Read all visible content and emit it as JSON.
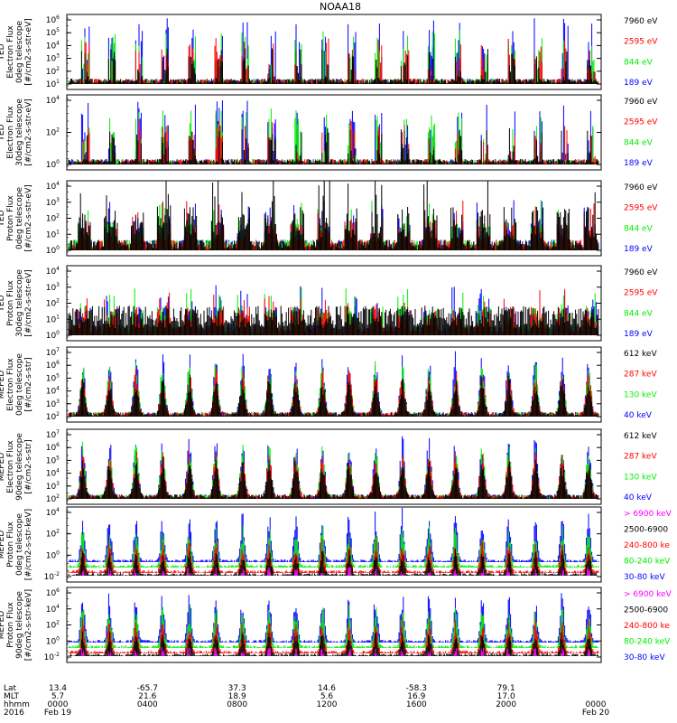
{
  "title": "NOAA18",
  "colors": {
    "black": "#000000",
    "red": "#ff0000",
    "green": "#00ee00",
    "blue": "#0000ff",
    "magenta": "#ff00ff"
  },
  "chart_data": [
    {
      "type": "line",
      "ylabel": [
        "TED",
        "Electron Flux",
        "0deg telescope",
        "[#/cm2-s-str-eV]"
      ],
      "ylog": true,
      "yticks": [
        "10^1",
        "10^2",
        "10^3",
        "10^4",
        "10^5",
        "10^6"
      ],
      "legend": [
        {
          "label": "7960 eV",
          "color": "black"
        },
        {
          "label": "2595 eV",
          "color": "red"
        },
        {
          "label": "844 eV",
          "color": "green"
        },
        {
          "label": "189 eV",
          "color": "blue"
        }
      ]
    },
    {
      "type": "line",
      "ylabel": [
        "TED",
        "Electron Flux",
        "30deg telescope",
        "[#/cm2-s-str-eV]"
      ],
      "ylog": true,
      "yticks": [
        "10^0",
        "10^2",
        "10^4"
      ],
      "legend": [
        {
          "label": "7960 eV",
          "color": "black"
        },
        {
          "label": "2595 eV",
          "color": "red"
        },
        {
          "label": "844 eV",
          "color": "green"
        },
        {
          "label": "189 eV",
          "color": "blue"
        }
      ]
    },
    {
      "type": "line",
      "ylabel": [
        "TED",
        "Proton Flux",
        "0deg telescope",
        "[#/cm2-s-str-eV]"
      ],
      "ylog": true,
      "yticks": [
        "10^0",
        "10^1",
        "10^2",
        "10^3",
        "10^4"
      ],
      "legend": [
        {
          "label": "7960 eV",
          "color": "black"
        },
        {
          "label": "2595 eV",
          "color": "red"
        },
        {
          "label": "844 eV",
          "color": "green"
        },
        {
          "label": "189 eV",
          "color": "blue"
        }
      ]
    },
    {
      "type": "line",
      "ylabel": [
        "TED",
        "Proton Flux",
        "30deg telescope",
        "[#/cm2-s-str-eV]"
      ],
      "ylog": true,
      "yticks": [
        "10^0",
        "10^1",
        "10^2",
        "10^3",
        "10^4"
      ],
      "legend": [
        {
          "label": "7960 eV",
          "color": "black"
        },
        {
          "label": "2595 eV",
          "color": "red"
        },
        {
          "label": "844 eV",
          "color": "green"
        },
        {
          "label": "189 eV",
          "color": "blue"
        }
      ]
    },
    {
      "type": "line",
      "ylabel": [
        "MEPED",
        "Electron Flux",
        "0deg telescope",
        "[#/cm2-s-str]"
      ],
      "ylog": true,
      "yticks": [
        "10^2",
        "10^3",
        "10^4",
        "10^5",
        "10^6",
        "10^7"
      ],
      "legend": [
        {
          "label": "612 keV",
          "color": "black"
        },
        {
          "label": "287 keV",
          "color": "red"
        },
        {
          "label": "130 keV",
          "color": "green"
        },
        {
          "label": "40 keV",
          "color": "blue"
        }
      ]
    },
    {
      "type": "line",
      "ylabel": [
        "MEPED",
        "Electron Flux",
        "90deg telescope",
        "[#/cm2-s-str]"
      ],
      "ylog": true,
      "yticks": [
        "10^2",
        "10^3",
        "10^4",
        "10^5",
        "10^6",
        "10^7"
      ],
      "legend": [
        {
          "label": "612 keV",
          "color": "black"
        },
        {
          "label": "287 keV",
          "color": "red"
        },
        {
          "label": "130 keV",
          "color": "green"
        },
        {
          "label": "40 keV",
          "color": "blue"
        }
      ]
    },
    {
      "type": "line",
      "ylabel": [
        "MEPED",
        "Proton Flux",
        "0deg telescope",
        "[#/cm2-s-str-keV]"
      ],
      "ylog": true,
      "yticks": [
        "10^-2",
        "10^0",
        "10^2",
        "10^4"
      ],
      "legend": [
        {
          "label": "> 6900 keV",
          "color": "magenta"
        },
        {
          "label": "2500-6900",
          "color": "black"
        },
        {
          "label": "240-800 ke",
          "color": "red"
        },
        {
          "label": "80-240 keV",
          "color": "green"
        },
        {
          "label": "30-80 keV",
          "color": "blue"
        }
      ]
    },
    {
      "type": "line",
      "ylabel": [
        "MEPED",
        "Proton Flux",
        "90deg telescope",
        "[#/cm2-s-str-keV]"
      ],
      "ylog": true,
      "yticks": [
        "10^-2",
        "10^0",
        "10^2",
        "10^4",
        "10^6"
      ],
      "legend": [
        {
          "label": "> 6900 keV",
          "color": "magenta"
        },
        {
          "label": "2500-6900",
          "color": "black"
        },
        {
          "label": "240-800 ke",
          "color": "red"
        },
        {
          "label": "80-240 keV",
          "color": "green"
        },
        {
          "label": "30-80 keV",
          "color": "blue"
        }
      ]
    }
  ],
  "xaxis": {
    "row_labels": [
      "Lat",
      "MLT",
      "hhmm",
      "2016"
    ],
    "columns": [
      {
        "lat": "13.4",
        "mlt": "5.7",
        "hhmm": "0000",
        "date": "Feb 19"
      },
      {
        "lat": "-65.7",
        "mlt": "21.6",
        "hhmm": "0400",
        "date": ""
      },
      {
        "lat": "37.3",
        "mlt": "18.9",
        "hhmm": "0800",
        "date": ""
      },
      {
        "lat": "14.6",
        "mlt": "5.6",
        "hhmm": "1200",
        "date": ""
      },
      {
        "lat": "-58.3",
        "mlt": "16.9",
        "hhmm": "1600",
        "date": ""
      },
      {
        "lat": "79.1",
        "mlt": "17.0",
        "hhmm": "2000",
        "date": ""
      },
      {
        "lat": "",
        "mlt": "",
        "hhmm": "0000",
        "date": "Feb 20"
      }
    ]
  }
}
